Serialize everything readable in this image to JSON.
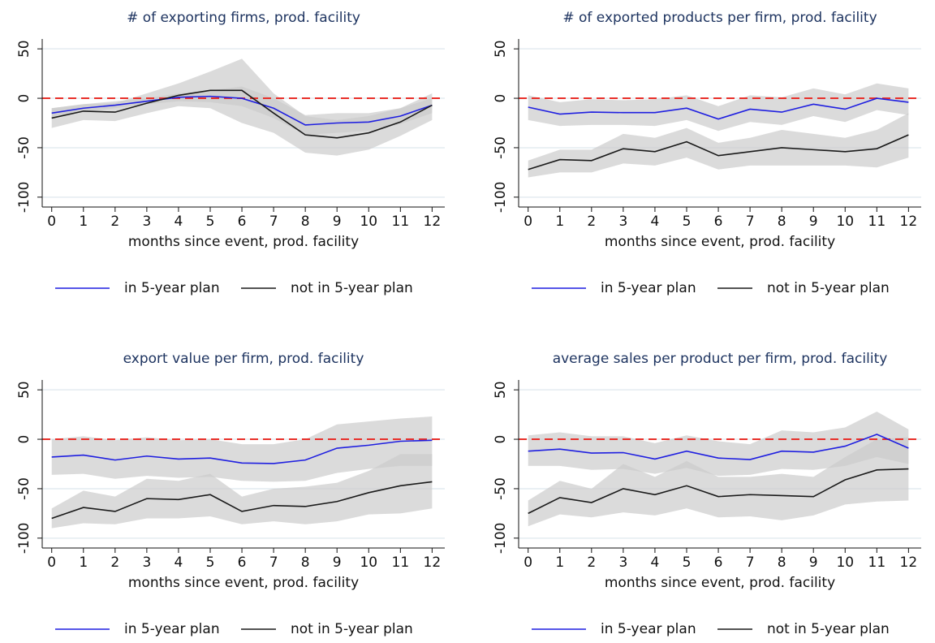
{
  "chart_data": [
    {
      "type": "line",
      "title": "# of exporting firms, prod. facility",
      "xlabel": "months since event, prod. facility",
      "x": [
        0,
        1,
        2,
        3,
        4,
        5,
        6,
        7,
        8,
        9,
        10,
        11,
        12
      ],
      "xlim": [
        -0.3,
        12.4
      ],
      "xticks": [
        0,
        1,
        2,
        3,
        4,
        5,
        6,
        7,
        8,
        9,
        10,
        11,
        12
      ],
      "ylim": [
        -110,
        60
      ],
      "yticks": [
        -100,
        -50,
        0,
        50
      ],
      "grid": true,
      "ref_line": {
        "value": 0,
        "color": "#e8302a"
      },
      "band_color": "#cccccc",
      "legend": "bottom",
      "series": [
        {
          "name": "in 5-year plan",
          "color": "#1f1fe0",
          "values": [
            -15,
            -10,
            -7,
            -3,
            1,
            2,
            0,
            -10,
            -27,
            -25,
            -24,
            -18,
            -7
          ],
          "lower": [
            -20,
            -14,
            -10,
            -6,
            -3,
            -4,
            -8,
            -20,
            -37,
            -35,
            -33,
            -26,
            -15
          ],
          "upper": [
            -10,
            -6,
            -3,
            0,
            5,
            8,
            12,
            0,
            -17,
            -15,
            -15,
            -10,
            0
          ]
        },
        {
          "name": "not in 5-year plan",
          "color": "#1a1a1a",
          "values": [
            -20,
            -13,
            -14,
            -5,
            3,
            8,
            8,
            -15,
            -37,
            -40,
            -35,
            -24,
            -7
          ],
          "lower": [
            -30,
            -22,
            -23,
            -15,
            -8,
            -10,
            -25,
            -35,
            -55,
            -58,
            -52,
            -38,
            -22
          ],
          "upper": [
            -10,
            -6,
            -5,
            5,
            15,
            27,
            40,
            5,
            -18,
            -22,
            -18,
            -10,
            5
          ]
        }
      ]
    },
    {
      "type": "line",
      "title": "# of exported products per firm, prod. facility",
      "xlabel": "months since event, prod. facility",
      "x": [
        0,
        1,
        2,
        3,
        4,
        5,
        6,
        7,
        8,
        9,
        10,
        11,
        12
      ],
      "xlim": [
        -0.3,
        12.4
      ],
      "xticks": [
        0,
        1,
        2,
        3,
        4,
        5,
        6,
        7,
        8,
        9,
        10,
        11,
        12
      ],
      "ylim": [
        -110,
        60
      ],
      "yticks": [
        -100,
        -50,
        0,
        50
      ],
      "grid": true,
      "ref_line": {
        "value": 0,
        "color": "#e8302a"
      },
      "band_color": "#cccccc",
      "legend": "bottom",
      "series": [
        {
          "name": "in 5-year plan",
          "color": "#1f1fe0",
          "values": [
            -9,
            -16,
            -14,
            -14.5,
            -14.5,
            -10,
            -21,
            -11,
            -14,
            -6,
            -11,
            0,
            -4
          ],
          "lower": [
            -22,
            -28,
            -27,
            -27,
            -28,
            -22,
            -33,
            -24,
            -27,
            -18,
            -24,
            -12,
            -17
          ],
          "upper": [
            3,
            -4,
            -1,
            -2,
            -1,
            3,
            -8,
            3,
            1,
            10,
            4,
            15,
            10
          ]
        },
        {
          "name": "not in 5-year plan",
          "color": "#1a1a1a",
          "values": [
            -72,
            -62,
            -63,
            -51,
            -54,
            -44,
            -58,
            -54,
            -50,
            -52,
            -54,
            -51,
            -37
          ],
          "lower": [
            -80,
            -75,
            -75,
            -66,
            -68,
            -60,
            -72,
            -68,
            -68,
            -68,
            -68,
            -70,
            -60
          ],
          "upper": [
            -63,
            -52,
            -52,
            -36,
            -40,
            -30,
            -45,
            -40,
            -32,
            -36,
            -40,
            -32,
            -15
          ]
        }
      ]
    },
    {
      "type": "line",
      "title": "export value per firm, prod. facility",
      "xlabel": "months since event, prod. facility",
      "x": [
        0,
        1,
        2,
        3,
        4,
        5,
        6,
        7,
        8,
        9,
        10,
        11,
        12
      ],
      "xlim": [
        -0.3,
        12.4
      ],
      "xticks": [
        0,
        1,
        2,
        3,
        4,
        5,
        6,
        7,
        8,
        9,
        10,
        11,
        12
      ],
      "ylim": [
        -110,
        60
      ],
      "yticks": [
        -100,
        -50,
        0,
        50
      ],
      "grid": true,
      "ref_line": {
        "value": 0,
        "color": "#e8302a"
      },
      "band_color": "#cccccc",
      "legend": "bottom",
      "series": [
        {
          "name": "in 5-year plan",
          "color": "#1f1fe0",
          "values": [
            -18,
            -16,
            -21,
            -17,
            -20,
            -19,
            -24,
            -24.5,
            -21,
            -9,
            -6,
            -2,
            -1
          ],
          "lower": [
            -36,
            -35,
            -40,
            -37,
            -39,
            -38,
            -42,
            -43,
            -42,
            -34,
            -30,
            -27,
            -27
          ],
          "upper": [
            0,
            3,
            -1,
            2,
            -1,
            0,
            -5,
            -5,
            0,
            15,
            18,
            21,
            23
          ]
        },
        {
          "name": "not in 5-year plan",
          "color": "#1a1a1a",
          "values": [
            -80,
            -69,
            -73,
            -60,
            -61,
            -56,
            -73,
            -67,
            -68,
            -63,
            -54,
            -47,
            -43
          ],
          "lower": [
            -90,
            -85,
            -86,
            -80,
            -80,
            -78,
            -86,
            -83,
            -86,
            -83,
            -76,
            -75,
            -70
          ],
          "upper": [
            -70,
            -52,
            -58,
            -40,
            -42,
            -35,
            -58,
            -50,
            -48,
            -44,
            -32,
            -15,
            -15
          ]
        }
      ]
    },
    {
      "type": "line",
      "title": "average sales per product per firm, prod. facility",
      "xlabel": "months since event, prod. facility",
      "x": [
        0,
        1,
        2,
        3,
        4,
        5,
        6,
        7,
        8,
        9,
        10,
        11,
        12
      ],
      "xlim": [
        -0.3,
        12.4
      ],
      "xticks": [
        0,
        1,
        2,
        3,
        4,
        5,
        6,
        7,
        8,
        9,
        10,
        11,
        12
      ],
      "ylim": [
        -110,
        60
      ],
      "yticks": [
        -100,
        -50,
        0,
        50
      ],
      "grid": true,
      "ref_line": {
        "value": 0,
        "color": "#e8302a"
      },
      "band_color": "#cccccc",
      "legend": "bottom",
      "series": [
        {
          "name": "in 5-year plan",
          "color": "#1f1fe0",
          "values": [
            -12,
            -10,
            -14,
            -13.5,
            -20,
            -12,
            -19,
            -20.5,
            -12,
            -13,
            -7,
            5,
            -9
          ],
          "lower": [
            -27,
            -27,
            -31,
            -30,
            -35,
            -29,
            -37,
            -36,
            -30,
            -31,
            -27,
            -18,
            -25
          ],
          "upper": [
            4,
            7,
            3,
            3,
            -4,
            4,
            -2,
            -5,
            9,
            7,
            12,
            28,
            10
          ]
        },
        {
          "name": "not in 5-year plan",
          "color": "#1a1a1a",
          "values": [
            -75,
            -59,
            -64,
            -50,
            -56,
            -47,
            -58,
            -56,
            -57,
            -58,
            -41,
            -31,
            -30
          ],
          "lower": [
            -88,
            -76,
            -79,
            -74,
            -77,
            -70,
            -79,
            -78,
            -82,
            -77,
            -66,
            -63,
            -62
          ],
          "upper": [
            -62,
            -42,
            -50,
            -25,
            -38,
            -22,
            -38,
            -38,
            -35,
            -38,
            -18,
            0,
            2
          ]
        }
      ]
    }
  ]
}
